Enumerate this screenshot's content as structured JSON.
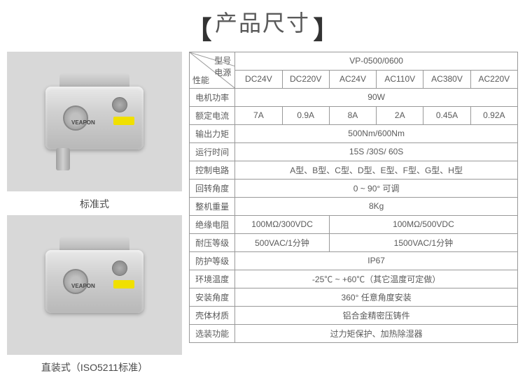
{
  "title": "产品尺寸",
  "brackets": {
    "left": "【",
    "right": "】"
  },
  "images": {
    "brand": "VEAPON",
    "caption1": "标准式",
    "caption2": "直装式（ISO5211标准）"
  },
  "header": {
    "model_label": "型号",
    "power_label": "电源",
    "perf_label": "性能",
    "model_value": "VP-0500/0600",
    "voltages": [
      "DC24V",
      "DC220V",
      "AC24V",
      "AC110V",
      "AC380V",
      "AC220V"
    ]
  },
  "rows": [
    {
      "label": "电机功率",
      "span": 6,
      "value": "90W"
    },
    {
      "label": "额定电流",
      "cells": [
        "7A",
        "0.9A",
        "8A",
        "2A",
        "0.45A",
        "0.92A"
      ]
    },
    {
      "label": "输出力矩",
      "span": 6,
      "value": "500Nm/600Nm"
    },
    {
      "label": "运行时间",
      "span": 6,
      "value": "15S /30S/ 60S"
    },
    {
      "label": "控制电路",
      "span": 6,
      "value": "A型、B型、C型、D型、E型、F型、G型、H型"
    },
    {
      "label": "回转角度",
      "span": 6,
      "value": "0 ~ 90° 可调"
    },
    {
      "label": "整机重量",
      "span": 6,
      "value": "8Kg"
    },
    {
      "label": "绝缘电阻",
      "spans": [
        2,
        4
      ],
      "values": [
        "100MΩ/300VDC",
        "100MΩ/500VDC"
      ]
    },
    {
      "label": "耐压等级",
      "spans": [
        2,
        4
      ],
      "values": [
        "500VAC/1分钟",
        "1500VAC/1分钟"
      ]
    },
    {
      "label": "防护等级",
      "span": 6,
      "value": "IP67"
    },
    {
      "label": "环境温度",
      "span": 6,
      "value": "-25℃ ~ +60℃（其它温度可定做）"
    },
    {
      "label": "安装角度",
      "span": 6,
      "value": "360° 任意角度安装"
    },
    {
      "label": "壳体材质",
      "span": 6,
      "value": "铝合金精密压铸件"
    },
    {
      "label": "选装功能",
      "span": 6,
      "value": "过力矩保护、加热除湿器"
    }
  ],
  "colors": {
    "border": "#999999",
    "text": "#5a5a5a",
    "img_bg": "#d8d8d8"
  }
}
